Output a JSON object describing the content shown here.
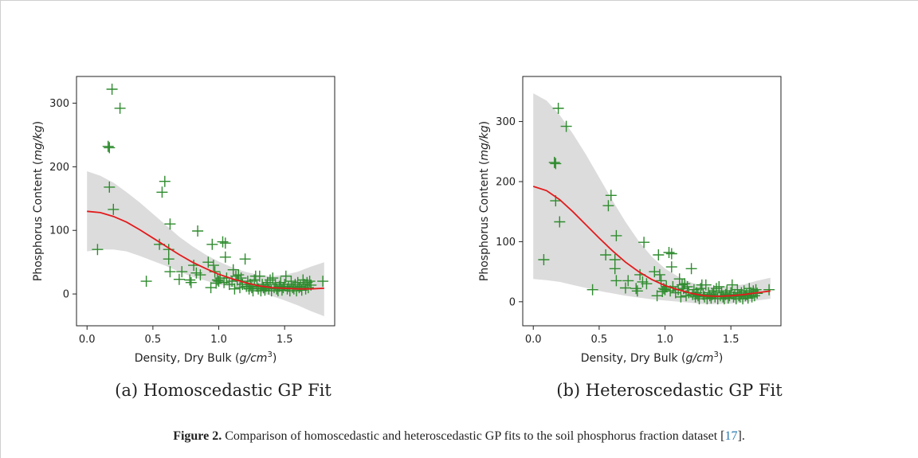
{
  "figure": {
    "label": "Figure 2.",
    "caption_text": " Comparison of homoscedastic and heteroscedastic GP fits to the soil phosphorus fraction dataset ",
    "ref_open": "[",
    "ref_num": "17",
    "ref_close": "]."
  },
  "colors": {
    "points": "#2e8b2e",
    "fit_line": "#e31a1c",
    "band": "#dcdcdc"
  },
  "chart_data": [
    {
      "type": "scatter",
      "subcaption": "(a) Homoscedastic GP Fit",
      "xlabel": "Density, Dry Bulk (g/cm3)",
      "ylabel": "Phosphorus Content (mg/kg)",
      "xlim": [
        -0.08,
        1.88
      ],
      "ylim": [
        -50,
        342
      ],
      "xticks": [
        0.0,
        0.5,
        1.0,
        1.5
      ],
      "xtick_labels": [
        "0.0",
        "0.5",
        "1.0",
        "1.5"
      ],
      "yticks": [
        0,
        100,
        200,
        300
      ],
      "ytick_labels": [
        "0",
        "100",
        "200",
        "300"
      ],
      "grid": false,
      "points": [
        [
          0.08,
          70
        ],
        [
          0.16,
          232
        ],
        [
          0.17,
          230
        ],
        [
          0.17,
          168
        ],
        [
          0.19,
          322
        ],
        [
          0.2,
          133
        ],
        [
          0.25,
          292
        ],
        [
          0.45,
          20
        ],
        [
          0.55,
          78
        ],
        [
          0.57,
          160
        ],
        [
          0.59,
          177
        ],
        [
          0.62,
          70
        ],
        [
          0.62,
          55
        ],
        [
          0.63,
          110
        ],
        [
          0.63,
          35
        ],
        [
          0.7,
          23
        ],
        [
          0.72,
          35
        ],
        [
          0.78,
          22
        ],
        [
          0.79,
          18
        ],
        [
          0.81,
          45
        ],
        [
          0.83,
          33
        ],
        [
          0.84,
          99
        ],
        [
          0.86,
          30
        ],
        [
          0.92,
          50
        ],
        [
          0.94,
          10
        ],
        [
          0.95,
          78
        ],
        [
          0.96,
          45
        ],
        [
          0.97,
          35
        ],
        [
          0.98,
          17
        ],
        [
          0.99,
          22
        ],
        [
          1.0,
          20
        ],
        [
          1.01,
          25
        ],
        [
          1.03,
          82
        ],
        [
          1.04,
          18
        ],
        [
          1.05,
          58
        ],
        [
          1.05,
          80
        ],
        [
          1.06,
          25
        ],
        [
          1.08,
          15
        ],
        [
          1.1,
          20
        ],
        [
          1.11,
          38
        ],
        [
          1.12,
          8
        ],
        [
          1.13,
          28
        ],
        [
          1.14,
          22
        ],
        [
          1.15,
          30
        ],
        [
          1.16,
          10
        ],
        [
          1.17,
          25
        ],
        [
          1.18,
          15
        ],
        [
          1.2,
          55
        ],
        [
          1.21,
          12
        ],
        [
          1.22,
          20
        ],
        [
          1.23,
          8
        ],
        [
          1.24,
          15
        ],
        [
          1.25,
          10
        ],
        [
          1.26,
          5
        ],
        [
          1.27,
          22
        ],
        [
          1.28,
          28
        ],
        [
          1.29,
          12
        ],
        [
          1.3,
          8
        ],
        [
          1.31,
          28
        ],
        [
          1.32,
          5
        ],
        [
          1.33,
          15
        ],
        [
          1.34,
          10
        ],
        [
          1.35,
          6
        ],
        [
          1.36,
          12
        ],
        [
          1.37,
          18
        ],
        [
          1.38,
          8
        ],
        [
          1.39,
          22
        ],
        [
          1.4,
          5
        ],
        [
          1.41,
          25
        ],
        [
          1.42,
          10
        ],
        [
          1.43,
          15
        ],
        [
          1.44,
          8
        ],
        [
          1.45,
          5
        ],
        [
          1.46,
          12
        ],
        [
          1.47,
          18
        ],
        [
          1.48,
          6
        ],
        [
          1.49,
          10
        ],
        [
          1.5,
          15
        ],
        [
          1.51,
          28
        ],
        [
          1.52,
          8
        ],
        [
          1.53,
          12
        ],
        [
          1.54,
          5
        ],
        [
          1.55,
          20
        ],
        [
          1.56,
          10
        ],
        [
          1.57,
          8
        ],
        [
          1.58,
          15
        ],
        [
          1.59,
          5
        ],
        [
          1.6,
          18
        ],
        [
          1.61,
          10
        ],
        [
          1.62,
          12
        ],
        [
          1.63,
          6
        ],
        [
          1.64,
          22
        ],
        [
          1.65,
          15
        ],
        [
          1.66,
          8
        ],
        [
          1.67,
          18
        ],
        [
          1.68,
          10
        ],
        [
          1.69,
          20
        ],
        [
          1.7,
          14
        ],
        [
          1.79,
          20
        ]
      ],
      "fit": {
        "x": [
          0.0,
          0.1,
          0.2,
          0.3,
          0.4,
          0.5,
          0.6,
          0.7,
          0.8,
          0.9,
          1.0,
          1.1,
          1.2,
          1.3,
          1.4,
          1.5,
          1.6,
          1.7,
          1.8
        ],
        "mean": [
          130,
          128,
          122,
          113,
          101,
          88,
          75,
          62,
          50,
          40,
          31,
          24,
          18,
          13,
          10,
          9,
          8,
          8,
          9
        ],
        "lower": [
          67,
          70,
          70,
          67,
          60,
          52,
          44,
          35,
          27,
          21,
          15,
          11,
          7,
          3,
          -3,
          -10,
          -18,
          -27,
          -35
        ],
        "upper": [
          193,
          186,
          175,
          160,
          144,
          126,
          108,
          90,
          75,
          62,
          51,
          42,
          35,
          30,
          28,
          30,
          35,
          43,
          50
        ]
      }
    },
    {
      "type": "scatter",
      "subcaption": "(b) Heteroscedastic GP Fit",
      "xlabel": "Density, Dry Bulk (g/cm3)",
      "ylabel": "Phosphorus Content (mg/kg)",
      "xlim": [
        -0.08,
        1.88
      ],
      "ylim": [
        -40,
        375
      ],
      "xticks": [
        0.0,
        0.5,
        1.0,
        1.5
      ],
      "xtick_labels": [
        "0.0",
        "0.5",
        "1.0",
        "1.5"
      ],
      "yticks": [
        0,
        100,
        200,
        300
      ],
      "ytick_labels": [
        "0",
        "100",
        "200",
        "300"
      ],
      "grid": false,
      "points": [
        [
          0.08,
          70
        ],
        [
          0.16,
          232
        ],
        [
          0.17,
          230
        ],
        [
          0.17,
          168
        ],
        [
          0.19,
          322
        ],
        [
          0.2,
          133
        ],
        [
          0.25,
          292
        ],
        [
          0.45,
          20
        ],
        [
          0.55,
          78
        ],
        [
          0.57,
          160
        ],
        [
          0.59,
          177
        ],
        [
          0.62,
          70
        ],
        [
          0.62,
          55
        ],
        [
          0.63,
          110
        ],
        [
          0.63,
          35
        ],
        [
          0.7,
          23
        ],
        [
          0.72,
          35
        ],
        [
          0.78,
          22
        ],
        [
          0.79,
          18
        ],
        [
          0.81,
          45
        ],
        [
          0.83,
          33
        ],
        [
          0.84,
          99
        ],
        [
          0.86,
          30
        ],
        [
          0.92,
          50
        ],
        [
          0.94,
          10
        ],
        [
          0.95,
          78
        ],
        [
          0.96,
          45
        ],
        [
          0.97,
          35
        ],
        [
          0.98,
          17
        ],
        [
          0.99,
          22
        ],
        [
          1.0,
          20
        ],
        [
          1.01,
          25
        ],
        [
          1.03,
          82
        ],
        [
          1.04,
          18
        ],
        [
          1.05,
          58
        ],
        [
          1.05,
          80
        ],
        [
          1.06,
          25
        ],
        [
          1.08,
          15
        ],
        [
          1.1,
          20
        ],
        [
          1.11,
          38
        ],
        [
          1.12,
          8
        ],
        [
          1.13,
          28
        ],
        [
          1.14,
          22
        ],
        [
          1.15,
          30
        ],
        [
          1.16,
          10
        ],
        [
          1.17,
          25
        ],
        [
          1.18,
          15
        ],
        [
          1.2,
          55
        ],
        [
          1.21,
          12
        ],
        [
          1.22,
          20
        ],
        [
          1.23,
          8
        ],
        [
          1.24,
          15
        ],
        [
          1.25,
          10
        ],
        [
          1.26,
          5
        ],
        [
          1.27,
          22
        ],
        [
          1.28,
          28
        ],
        [
          1.29,
          12
        ],
        [
          1.3,
          8
        ],
        [
          1.31,
          28
        ],
        [
          1.32,
          5
        ],
        [
          1.33,
          15
        ],
        [
          1.34,
          10
        ],
        [
          1.35,
          6
        ],
        [
          1.36,
          12
        ],
        [
          1.37,
          18
        ],
        [
          1.38,
          8
        ],
        [
          1.39,
          22
        ],
        [
          1.4,
          5
        ],
        [
          1.41,
          25
        ],
        [
          1.42,
          10
        ],
        [
          1.43,
          15
        ],
        [
          1.44,
          8
        ],
        [
          1.45,
          5
        ],
        [
          1.46,
          12
        ],
        [
          1.47,
          18
        ],
        [
          1.48,
          6
        ],
        [
          1.49,
          10
        ],
        [
          1.5,
          15
        ],
        [
          1.51,
          28
        ],
        [
          1.52,
          8
        ],
        [
          1.53,
          12
        ],
        [
          1.54,
          5
        ],
        [
          1.55,
          20
        ],
        [
          1.56,
          10
        ],
        [
          1.57,
          8
        ],
        [
          1.58,
          15
        ],
        [
          1.59,
          5
        ],
        [
          1.6,
          18
        ],
        [
          1.61,
          10
        ],
        [
          1.62,
          12
        ],
        [
          1.63,
          6
        ],
        [
          1.64,
          22
        ],
        [
          1.65,
          15
        ],
        [
          1.66,
          8
        ],
        [
          1.67,
          18
        ],
        [
          1.68,
          10
        ],
        [
          1.69,
          20
        ],
        [
          1.7,
          14
        ],
        [
          1.79,
          20
        ]
      ],
      "fit": {
        "x": [
          0.0,
          0.1,
          0.2,
          0.3,
          0.4,
          0.5,
          0.6,
          0.7,
          0.8,
          0.9,
          1.0,
          1.1,
          1.2,
          1.3,
          1.4,
          1.5,
          1.6,
          1.7,
          1.8
        ],
        "mean": [
          192,
          185,
          170,
          150,
          128,
          106,
          85,
          66,
          50,
          37,
          27,
          20,
          14,
          10,
          9,
          10,
          12,
          15,
          18
        ],
        "lower": [
          38,
          36,
          33,
          28,
          23,
          18,
          14,
          10,
          7,
          4,
          2,
          0,
          -2,
          -4,
          -4,
          -3,
          -1,
          2,
          5
        ],
        "upper": [
          347,
          335,
          311,
          280,
          245,
          207,
          169,
          133,
          101,
          75,
          55,
          42,
          32,
          26,
          25,
          26,
          29,
          35,
          40
        ]
      }
    }
  ]
}
